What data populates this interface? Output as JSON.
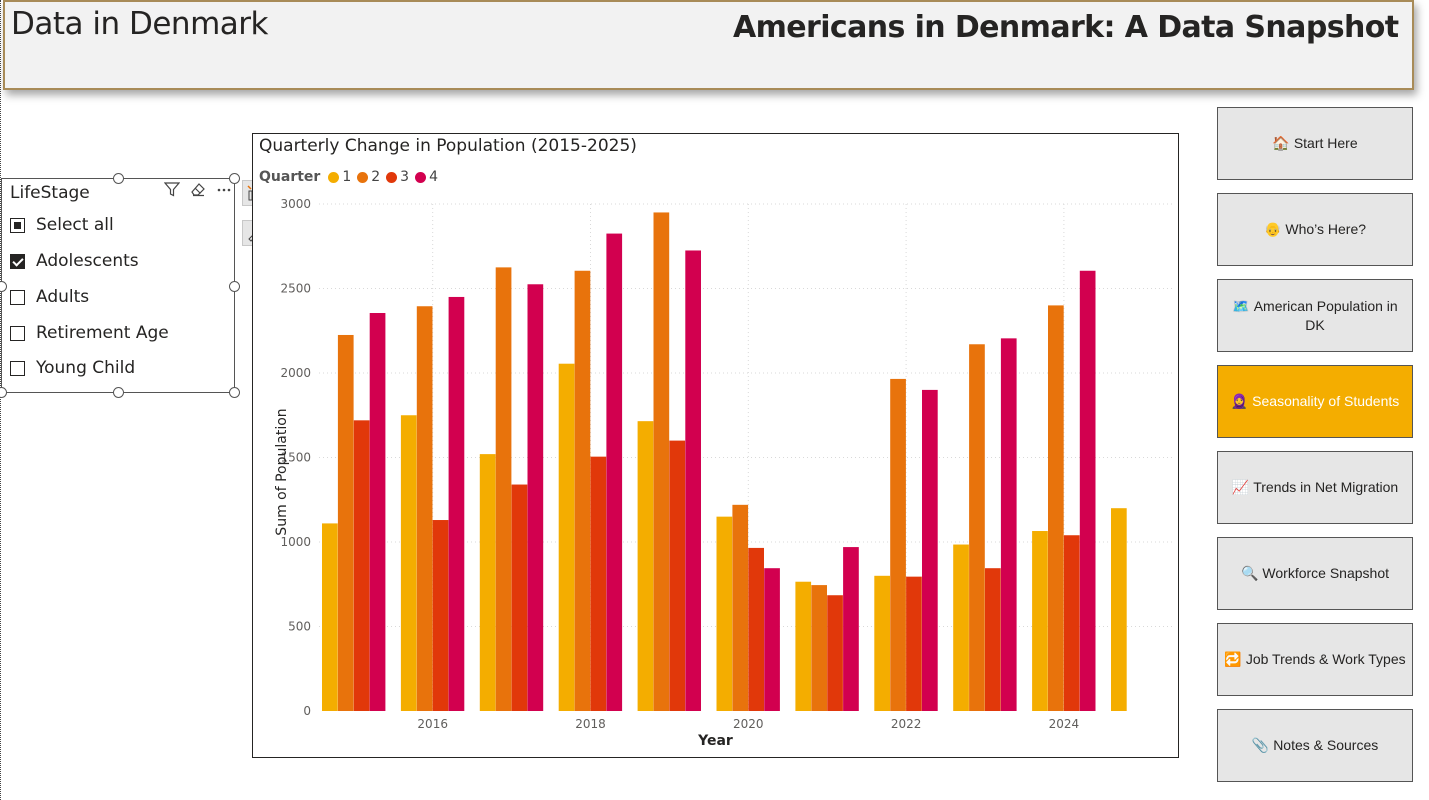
{
  "header": {
    "brand": "Data in Denmark",
    "title": "Americans in Denmark: A Data Snapshot"
  },
  "slicer": {
    "title": "LifeStage",
    "items": [
      {
        "label": "Select all",
        "state": "partial"
      },
      {
        "label": "Adolescents",
        "state": "checked"
      },
      {
        "label": "Adults",
        "state": "unchecked"
      },
      {
        "label": "Retirement Age",
        "state": "unchecked"
      },
      {
        "label": "Young Child",
        "state": "unchecked"
      }
    ]
  },
  "nav": [
    {
      "icon": "🏠",
      "label": "Start Here",
      "active": false
    },
    {
      "icon": "👴",
      "label": "Who’s Here?",
      "active": false
    },
    {
      "icon": "🗺️",
      "label": "American Population in DK",
      "active": false
    },
    {
      "icon": "🧕",
      "label": "Seasonality of Students",
      "active": true
    },
    {
      "icon": "📈",
      "label": "Trends in Net Migration",
      "active": false
    },
    {
      "icon": "🔍",
      "label": "Workforce Snapshot",
      "active": false
    },
    {
      "icon": "🔁",
      "label": "Job Trends & Work Types",
      "active": false
    },
    {
      "icon": "📎",
      "label": "Notes & Sources",
      "active": false
    }
  ],
  "chart_data": {
    "type": "bar",
    "title": "Quarterly Change in Population (2015-2025)",
    "legend_title": "Quarter",
    "xlabel": "Year",
    "ylabel": "Sum of Population",
    "ylim": [
      0,
      3000
    ],
    "yticks": [
      0,
      500,
      1000,
      1500,
      2000,
      2500,
      3000
    ],
    "x_tick_labels": [
      "2016",
      "2018",
      "2020",
      "2022",
      "2024"
    ],
    "categories": [
      "2015",
      "2016",
      "2017",
      "2018",
      "2019",
      "2020",
      "2021",
      "2022",
      "2023",
      "2024",
      "2025"
    ],
    "series": [
      {
        "name": "1",
        "color": "#f4ad00",
        "values": [
          1110,
          1750,
          1520,
          2055,
          1715,
          1150,
          765,
          800,
          985,
          1065,
          1200
        ]
      },
      {
        "name": "2",
        "color": "#e8730c",
        "values": [
          2225,
          2395,
          2625,
          2605,
          2950,
          1220,
          745,
          1965,
          2170,
          2400,
          null
        ]
      },
      {
        "name": "3",
        "color": "#e1380a",
        "values": [
          1720,
          1130,
          1340,
          1505,
          1600,
          965,
          685,
          795,
          845,
          1040,
          null
        ]
      },
      {
        "name": "4",
        "color": "#d2004f",
        "values": [
          2355,
          2450,
          2525,
          2825,
          2725,
          845,
          970,
          1900,
          2205,
          2605,
          null
        ]
      }
    ],
    "grid": true,
    "legend_position": "top-left"
  }
}
